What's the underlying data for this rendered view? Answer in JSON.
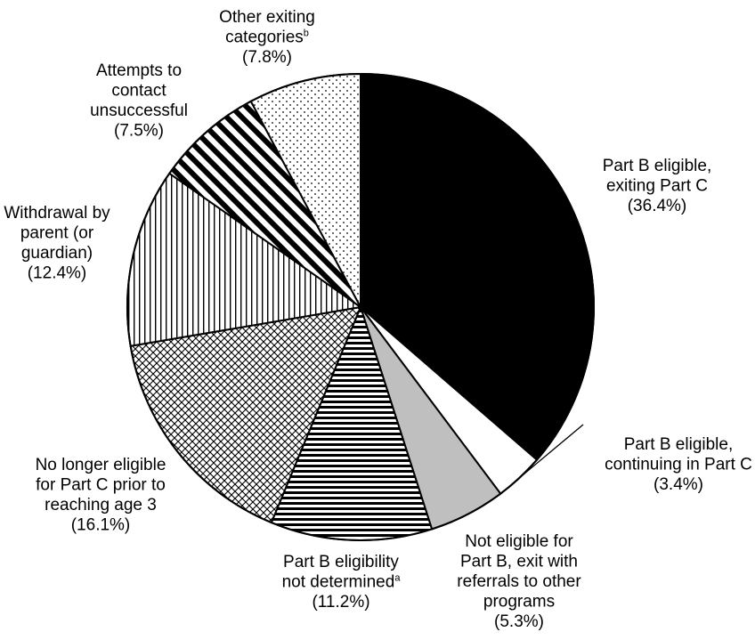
{
  "chart_data": {
    "type": "pie",
    "start_angle_deg": 0,
    "direction": "clockwise",
    "slices": [
      {
        "label": "Part B eligible, exiting Part C",
        "lines": [
          "Part B eligible,",
          "exiting Part C",
          "(36.4%)"
        ],
        "value": 36.4,
        "pattern": "solid-black"
      },
      {
        "label": "Part B eligible, continuing in Part C",
        "lines": [
          "Part B eligible,",
          "continuing in Part C",
          "(3.4%)"
        ],
        "value": 3.4,
        "pattern": "solid-white"
      },
      {
        "label": "Not eligible for Part B, exit with referrals to other programs",
        "lines": [
          "Not eligible for",
          "Part B, exit with",
          "referrals to other",
          "programs",
          "(5.3%)"
        ],
        "value": 5.3,
        "pattern": "solid-gray"
      },
      {
        "label": "Part B eligibility not determined",
        "lines": [
          "Part B eligibility",
          "not determined",
          "(11.2%)"
        ],
        "footnote": "a",
        "footnote_line": 1,
        "value": 11.2,
        "pattern": "horizontal-stripes"
      },
      {
        "label": "No longer eligible for Part C prior to reaching age 3",
        "lines": [
          "No longer eligible",
          "for Part C prior to",
          "reaching age 3",
          "(16.1%)"
        ],
        "value": 16.1,
        "pattern": "crosshatch"
      },
      {
        "label": "Withdrawal by parent (or guardian)",
        "lines": [
          "Withdrawal by",
          "parent (or",
          "guardian)",
          "(12.4%)"
        ],
        "value": 12.4,
        "pattern": "vertical-stripes"
      },
      {
        "label": "Attempts to contact unsuccessful",
        "lines": [
          "Attempts to",
          "contact",
          "unsuccessful",
          "(7.5%)"
        ],
        "value": 7.5,
        "pattern": "diagonal-stripes"
      },
      {
        "label": "Other exiting categories",
        "lines": [
          "Other exiting",
          "categories",
          "(7.8%)"
        ],
        "footnote": "b",
        "footnote_line": 1,
        "value": 7.8,
        "pattern": "dots"
      }
    ]
  }
}
